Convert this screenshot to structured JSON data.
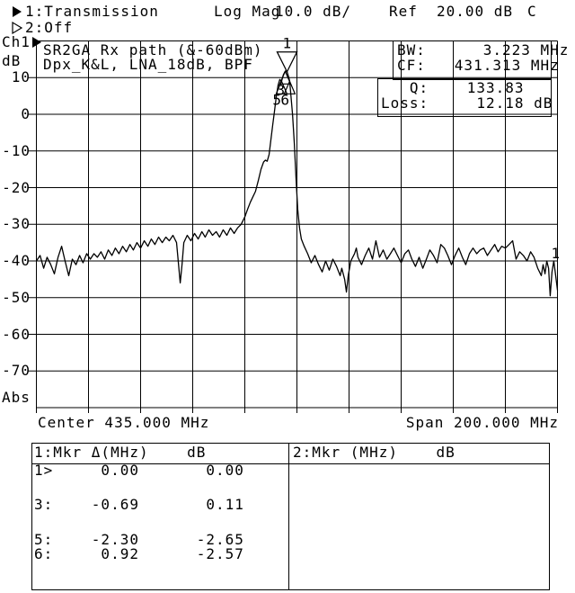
{
  "header": {
    "trace1_label": "1:Transmission",
    "log_mag": "Log Mag",
    "scale": "10.0 dB/",
    "ref_label": "Ref",
    "ref_value": "20.00 dB",
    "cal_status": "C",
    "trace2_label": "2:Off"
  },
  "axis": {
    "channel": "Ch1",
    "unit": "dB",
    "abs": "Abs",
    "y_labels": [
      "10",
      "0",
      "-10",
      "-20",
      "-30",
      "-40",
      "-50",
      "-60",
      "-70"
    ],
    "center": "Center 435.000 MHz",
    "span": "Span 200.000 MHz"
  },
  "annotation": {
    "line1": "SR2GA Rx path (&-60dBm)",
    "line2": "Dpx_K&L, LNA_18dB, BPF"
  },
  "stats": {
    "box1": [
      "BW:      3.223 MHz",
      "CF:   431.313 MHz"
    ],
    "box2": [
      "   Q:    133.83",
      "Loss:     12.18 dB"
    ]
  },
  "marker_table": {
    "left_header": "1:Mkr Δ(MHz)    dB",
    "right_header": "2:Mkr (MHz)    dB",
    "rows": [
      "1>     0.00       0.00",
      "3:    -0.69       0.11",
      "5:    -2.30      -2.65",
      "6:     0.92      -2.57"
    ]
  },
  "chart_data": {
    "type": "line",
    "title": "1:Transmission Log Mag 10.0 dB/ Ref 20.00 dB",
    "xlabel": "Center 435.000 MHz  Span 200.000 MHz",
    "ylabel": "dB",
    "xlim": [
      335,
      535
    ],
    "ylim": [
      -80,
      20
    ],
    "center_MHz": 435.0,
    "span_MHz": 200.0,
    "scale_dB_per_div": 10.0,
    "ref_dB": 20.0,
    "grid": true,
    "readouts": {
      "BW_MHz": 3.223,
      "CF_MHz": 431.313,
      "Q": 133.83,
      "Loss_dB": 12.18
    },
    "series": [
      {
        "name": "1:Transmission",
        "points": [
          [
            335.0,
            -40
          ],
          [
            336.4,
            -38.5
          ],
          [
            337.8,
            -42
          ],
          [
            339.1,
            -39
          ],
          [
            340.5,
            -41
          ],
          [
            341.9,
            -43.5
          ],
          [
            343.3,
            -39
          ],
          [
            344.7,
            -36
          ],
          [
            346.0,
            -40
          ],
          [
            347.4,
            -44
          ],
          [
            348.8,
            -39.5
          ],
          [
            350.2,
            -41
          ],
          [
            351.6,
            -38.5
          ],
          [
            352.9,
            -40.5
          ],
          [
            354.3,
            -38
          ],
          [
            355.7,
            -39.5
          ],
          [
            357.1,
            -38
          ],
          [
            358.4,
            -39
          ],
          [
            359.8,
            -37.5
          ],
          [
            361.2,
            -39.5
          ],
          [
            362.6,
            -37
          ],
          [
            364.0,
            -38.5
          ],
          [
            365.3,
            -36.5
          ],
          [
            366.7,
            -38
          ],
          [
            368.1,
            -36
          ],
          [
            369.5,
            -37.5
          ],
          [
            370.9,
            -35.5
          ],
          [
            372.2,
            -37
          ],
          [
            373.6,
            -35
          ],
          [
            375.0,
            -36.5
          ],
          [
            376.4,
            -34.5
          ],
          [
            377.8,
            -36
          ],
          [
            379.1,
            -34
          ],
          [
            380.5,
            -35.5
          ],
          [
            381.9,
            -33.5
          ],
          [
            383.3,
            -35
          ],
          [
            384.7,
            -33.5
          ],
          [
            386.0,
            -34.5
          ],
          [
            387.4,
            -33
          ],
          [
            388.8,
            -35
          ],
          [
            390.2,
            -46
          ],
          [
            390.9,
            -41
          ],
          [
            391.6,
            -35
          ],
          [
            392.9,
            -33
          ],
          [
            394.3,
            -34.5
          ],
          [
            395.7,
            -32.5
          ],
          [
            397.1,
            -34
          ],
          [
            398.5,
            -32
          ],
          [
            399.8,
            -33.5
          ],
          [
            401.2,
            -31.5
          ],
          [
            402.6,
            -33
          ],
          [
            404.0,
            -32
          ],
          [
            405.3,
            -33.5
          ],
          [
            406.7,
            -31.5
          ],
          [
            408.1,
            -33
          ],
          [
            409.5,
            -31
          ],
          [
            410.9,
            -32.5
          ],
          [
            412.2,
            -31
          ],
          [
            413.6,
            -30
          ],
          [
            415.0,
            -28
          ],
          [
            416.0,
            -26
          ],
          [
            417.1,
            -24
          ],
          [
            418.1,
            -22.5
          ],
          [
            419.1,
            -21
          ],
          [
            420.2,
            -18
          ],
          [
            421.2,
            -15
          ],
          [
            422.2,
            -13
          ],
          [
            422.9,
            -12.5
          ],
          [
            423.6,
            -12.8
          ],
          [
            424.3,
            -11
          ],
          [
            425.0,
            -7
          ],
          [
            425.7,
            -3
          ],
          [
            426.4,
            1
          ],
          [
            427.1,
            5
          ],
          [
            427.8,
            8
          ],
          [
            428.4,
            9.5
          ],
          [
            429.1,
            9.0
          ],
          [
            429.8,
            10.8
          ],
          [
            430.5,
            11.7
          ],
          [
            431.2,
            11.6
          ],
          [
            431.9,
            10
          ],
          [
            432.2,
            9.0
          ],
          [
            432.6,
            6
          ],
          [
            433.3,
            0
          ],
          [
            434.0,
            -8
          ],
          [
            434.7,
            -18
          ],
          [
            435.3,
            -26
          ],
          [
            436.0,
            -31
          ],
          [
            436.7,
            -34
          ],
          [
            437.8,
            -36
          ],
          [
            439.1,
            -38
          ],
          [
            440.5,
            -40.5
          ],
          [
            441.9,
            -38.5
          ],
          [
            443.3,
            -41
          ],
          [
            444.7,
            -43
          ],
          [
            446.0,
            -40
          ],
          [
            447.4,
            -42.5
          ],
          [
            448.8,
            -39.5
          ],
          [
            450.2,
            -41.5
          ],
          [
            451.6,
            -44
          ],
          [
            452.2,
            -42
          ],
          [
            453.3,
            -45
          ],
          [
            454.0,
            -48.5
          ],
          [
            454.7,
            -44
          ],
          [
            455.7,
            -40
          ],
          [
            457.1,
            -38
          ],
          [
            457.8,
            -36.5
          ],
          [
            458.4,
            -39
          ],
          [
            459.8,
            -41
          ],
          [
            461.2,
            -38.5
          ],
          [
            462.6,
            -36.5
          ],
          [
            464.0,
            -39.5
          ],
          [
            465.3,
            -34.5
          ],
          [
            466.7,
            -39
          ],
          [
            468.1,
            -37
          ],
          [
            469.5,
            -39.5
          ],
          [
            470.9,
            -38
          ],
          [
            472.2,
            -36.5
          ],
          [
            473.6,
            -38.5
          ],
          [
            475.0,
            -40.5
          ],
          [
            476.4,
            -38
          ],
          [
            477.8,
            -37
          ],
          [
            479.1,
            -39.5
          ],
          [
            480.5,
            -41.5
          ],
          [
            481.9,
            -39
          ],
          [
            483.3,
            -42
          ],
          [
            484.7,
            -39.5
          ],
          [
            486.0,
            -37
          ],
          [
            487.4,
            -38.5
          ],
          [
            488.8,
            -40.5
          ],
          [
            490.2,
            -35.5
          ],
          [
            491.6,
            -36.5
          ],
          [
            492.9,
            -38.5
          ],
          [
            494.3,
            -41
          ],
          [
            495.7,
            -38.5
          ],
          [
            497.1,
            -36.5
          ],
          [
            498.5,
            -39
          ],
          [
            499.8,
            -41
          ],
          [
            501.2,
            -38
          ],
          [
            502.6,
            -36.5
          ],
          [
            504.0,
            -38
          ],
          [
            505.3,
            -37
          ],
          [
            506.7,
            -36.5
          ],
          [
            508.1,
            -38.5
          ],
          [
            509.5,
            -37
          ],
          [
            510.9,
            -35.5
          ],
          [
            512.2,
            -37.5
          ],
          [
            513.6,
            -36
          ],
          [
            515.0,
            -36.5
          ],
          [
            516.4,
            -35.5
          ],
          [
            517.8,
            -34.5
          ],
          [
            519.1,
            -39.5
          ],
          [
            520.5,
            -37.5
          ],
          [
            521.9,
            -38.5
          ],
          [
            523.3,
            -40
          ],
          [
            524.7,
            -37.5
          ],
          [
            526.0,
            -39
          ],
          [
            527.4,
            -42
          ],
          [
            528.8,
            -44
          ],
          [
            529.5,
            -41
          ],
          [
            530.2,
            -43.5
          ],
          [
            530.9,
            -40
          ],
          [
            531.6,
            -42
          ],
          [
            532.2,
            -49.5
          ],
          [
            532.9,
            -43
          ],
          [
            533.6,
            -40
          ],
          [
            534.3,
            -44
          ],
          [
            535.0,
            -48
          ]
        ]
      }
    ],
    "markers": [
      {
        "label": "1",
        "f": 431.2,
        "dB": 11.6,
        "style": "down-large"
      },
      {
        "label": "3",
        "f": 430.5,
        "dB": 11.7,
        "style": "up-small"
      },
      {
        "label": "5",
        "f": 429.1,
        "dB": 9.0,
        "style": "up-small"
      },
      {
        "label": "6",
        "f": 432.2,
        "dB": 9.0,
        "style": "up-small"
      }
    ],
    "edge_marker": {
      "label": "1",
      "dB": -38
    }
  }
}
